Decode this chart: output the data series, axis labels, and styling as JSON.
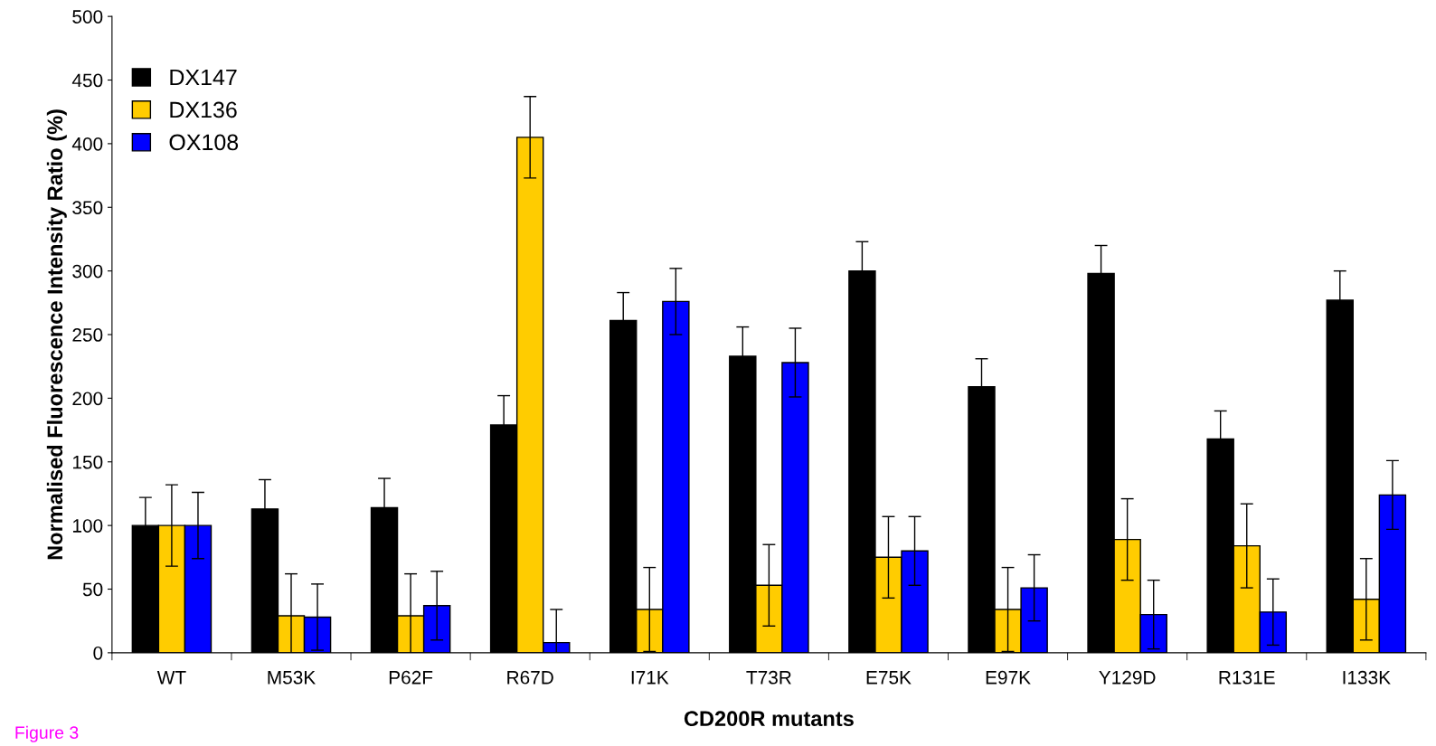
{
  "chart_data": {
    "type": "bar",
    "xlabel": "CD200R mutants",
    "ylabel": "Normalised Fluorescence Intensity Ratio (%)",
    "categories": [
      "WT",
      "M53K",
      "P62F",
      "R67D",
      "I71K",
      "T73R",
      "E75K",
      "E97K",
      "Y129D",
      "R131E",
      "I133K"
    ],
    "series": [
      {
        "name": "DX147",
        "color": "#000000",
        "values": [
          100,
          113,
          114,
          179,
          261,
          233,
          300,
          209,
          298,
          168,
          277
        ],
        "errors": [
          22,
          23,
          23,
          23,
          22,
          23,
          23,
          22,
          22,
          22,
          23
        ]
      },
      {
        "name": "DX136",
        "color": "#ffcc00",
        "values": [
          100,
          29,
          29,
          405,
          34,
          53,
          75,
          34,
          89,
          84,
          42
        ],
        "errors": [
          32,
          33,
          33,
          32,
          33,
          32,
          32,
          33,
          32,
          33,
          32
        ]
      },
      {
        "name": "OX108",
        "color": "#0000ff",
        "values": [
          100,
          28,
          37,
          8,
          276,
          228,
          80,
          51,
          30,
          32,
          124
        ],
        "errors": [
          26,
          26,
          27,
          26,
          26,
          27,
          27,
          26,
          27,
          26,
          27
        ]
      }
    ],
    "ylim": [
      0,
      500
    ],
    "yticks": [
      0,
      50,
      100,
      150,
      200,
      250,
      300,
      350,
      400,
      450,
      500
    ],
    "grid": false,
    "legend": "top left",
    "annotations": [
      "Figure 3"
    ]
  }
}
